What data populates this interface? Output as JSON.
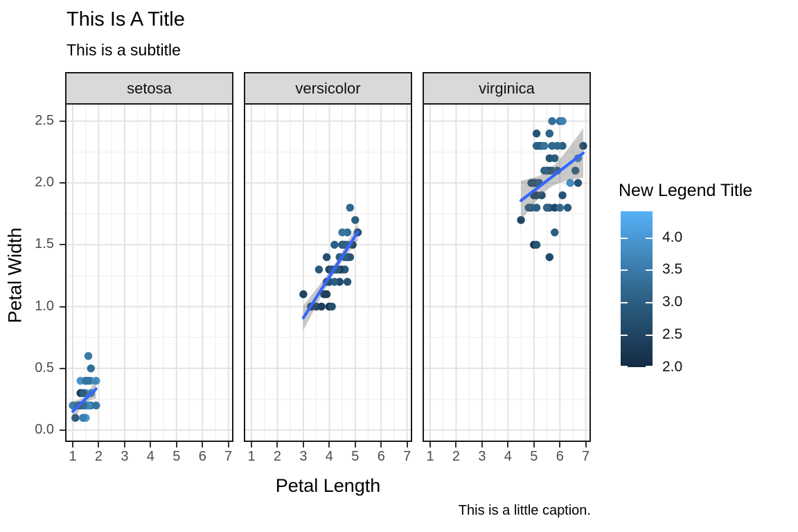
{
  "chart_data": {
    "type": "scatter",
    "title": "This Is A Title",
    "subtitle": "This is a subtitle",
    "caption": "This is a little caption.",
    "xlabel": "Petal Length",
    "ylabel": "Petal Width",
    "grid": true,
    "x_ticks": [
      1,
      2,
      3,
      4,
      5,
      6,
      7
    ],
    "y_ticks": [
      0.0,
      0.5,
      1.0,
      1.5,
      2.0,
      2.5
    ],
    "x_domain": [
      0.705,
      7.195
    ],
    "y_domain": [
      -0.095,
      2.645
    ],
    "point_columns": [
      "petal_length",
      "petal_width",
      "sepal_width"
    ],
    "legend": {
      "title": "New Legend Title",
      "position": "right",
      "type": "gradient-colorbar",
      "domain": [
        2.0,
        4.4
      ],
      "ticks": [
        4.0,
        3.5,
        3.0,
        2.5,
        2.0
      ],
      "low_color": "#132B43",
      "mid_color": "#31688E",
      "high_color": "#56B1F7"
    },
    "smooth_style": {
      "method": "lm",
      "line_color": "#3366FF",
      "band_color": "rgba(100,100,100,0.35)"
    },
    "facets": [
      {
        "label": "setosa",
        "smooth": {
          "x_range": [
            1.0,
            1.9
          ],
          "intercept": -0.0482,
          "slope": 0.2013,
          "resid_se": 0.1005,
          "n": 50,
          "x_mean": 1.462,
          "sxx": 1.4778,
          "t_crit": 2.0106
        },
        "points": [
          [
            1.4,
            0.2,
            3.5
          ],
          [
            1.4,
            0.2,
            3.0
          ],
          [
            1.3,
            0.2,
            3.2
          ],
          [
            1.5,
            0.2,
            3.1
          ],
          [
            1.4,
            0.2,
            3.6
          ],
          [
            1.7,
            0.4,
            3.9
          ],
          [
            1.4,
            0.3,
            3.4
          ],
          [
            1.5,
            0.2,
            3.4
          ],
          [
            1.4,
            0.2,
            2.9
          ],
          [
            1.5,
            0.1,
            3.1
          ],
          [
            1.5,
            0.2,
            3.7
          ],
          [
            1.6,
            0.2,
            3.4
          ],
          [
            1.4,
            0.1,
            3.0
          ],
          [
            1.1,
            0.1,
            3.0
          ],
          [
            1.2,
            0.2,
            4.0
          ],
          [
            1.5,
            0.4,
            4.4
          ],
          [
            1.3,
            0.4,
            3.9
          ],
          [
            1.4,
            0.3,
            3.5
          ],
          [
            1.7,
            0.3,
            3.8
          ],
          [
            1.5,
            0.3,
            3.8
          ],
          [
            1.7,
            0.2,
            3.4
          ],
          [
            1.5,
            0.4,
            3.7
          ],
          [
            1.0,
            0.2,
            3.6
          ],
          [
            1.7,
            0.5,
            3.3
          ],
          [
            1.9,
            0.2,
            3.4
          ],
          [
            1.6,
            0.2,
            3.0
          ],
          [
            1.6,
            0.4,
            3.4
          ],
          [
            1.5,
            0.2,
            3.5
          ],
          [
            1.4,
            0.2,
            3.4
          ],
          [
            1.6,
            0.2,
            3.2
          ],
          [
            1.6,
            0.2,
            3.1
          ],
          [
            1.5,
            0.4,
            3.4
          ],
          [
            1.5,
            0.1,
            4.1
          ],
          [
            1.4,
            0.2,
            4.2
          ],
          [
            1.5,
            0.2,
            3.1
          ],
          [
            1.2,
            0.2,
            3.2
          ],
          [
            1.3,
            0.2,
            3.5
          ],
          [
            1.4,
            0.1,
            3.6
          ],
          [
            1.3,
            0.2,
            3.0
          ],
          [
            1.5,
            0.2,
            3.4
          ],
          [
            1.3,
            0.3,
            3.5
          ],
          [
            1.3,
            0.3,
            2.3
          ],
          [
            1.3,
            0.2,
            3.2
          ],
          [
            1.6,
            0.6,
            3.5
          ],
          [
            1.9,
            0.4,
            3.8
          ],
          [
            1.4,
            0.3,
            3.0
          ],
          [
            1.6,
            0.2,
            3.8
          ],
          [
            1.4,
            0.2,
            3.2
          ],
          [
            1.5,
            0.2,
            3.7
          ],
          [
            1.4,
            0.2,
            3.3
          ]
        ]
      },
      {
        "label": "versicolor",
        "smooth": {
          "x_range": [
            3.0,
            5.1
          ],
          "intercept": -0.0843,
          "slope": 0.3311,
          "resid_se": 0.1234,
          "n": 50,
          "x_mean": 4.26,
          "sxx": 10.82,
          "t_crit": 2.0106
        },
        "points": [
          [
            4.7,
            1.4,
            3.2
          ],
          [
            4.5,
            1.5,
            3.2
          ],
          [
            4.9,
            1.5,
            3.1
          ],
          [
            4.0,
            1.3,
            2.3
          ],
          [
            4.6,
            1.5,
            2.8
          ],
          [
            4.5,
            1.3,
            2.8
          ],
          [
            4.7,
            1.6,
            3.3
          ],
          [
            3.3,
            1.0,
            2.4
          ],
          [
            4.6,
            1.3,
            2.9
          ],
          [
            3.9,
            1.4,
            2.7
          ],
          [
            3.5,
            1.0,
            2.0
          ],
          [
            4.2,
            1.5,
            3.0
          ],
          [
            4.0,
            1.0,
            2.2
          ],
          [
            4.7,
            1.4,
            2.9
          ],
          [
            3.6,
            1.3,
            2.9
          ],
          [
            4.4,
            1.4,
            3.1
          ],
          [
            4.5,
            1.5,
            3.0
          ],
          [
            4.1,
            1.0,
            2.7
          ],
          [
            4.5,
            1.5,
            2.2
          ],
          [
            3.9,
            1.1,
            2.5
          ],
          [
            4.8,
            1.8,
            3.2
          ],
          [
            4.0,
            1.3,
            2.8
          ],
          [
            4.9,
            1.5,
            2.5
          ],
          [
            4.7,
            1.2,
            2.8
          ],
          [
            4.3,
            1.3,
            2.9
          ],
          [
            4.4,
            1.4,
            3.0
          ],
          [
            4.8,
            1.4,
            2.8
          ],
          [
            5.0,
            1.7,
            3.0
          ],
          [
            4.5,
            1.5,
            2.9
          ],
          [
            3.5,
            1.0,
            2.6
          ],
          [
            3.8,
            1.1,
            2.4
          ],
          [
            3.7,
            1.0,
            2.4
          ],
          [
            3.9,
            1.2,
            2.7
          ],
          [
            5.1,
            1.6,
            2.7
          ],
          [
            4.5,
            1.5,
            3.0
          ],
          [
            4.5,
            1.6,
            3.4
          ],
          [
            4.7,
            1.5,
            3.1
          ],
          [
            4.4,
            1.3,
            2.3
          ],
          [
            4.1,
            1.3,
            3.0
          ],
          [
            4.0,
            1.3,
            2.5
          ],
          [
            4.4,
            1.2,
            2.6
          ],
          [
            4.6,
            1.4,
            3.0
          ],
          [
            4.0,
            1.2,
            2.6
          ],
          [
            3.3,
            1.0,
            2.3
          ],
          [
            4.2,
            1.3,
            2.7
          ],
          [
            4.2,
            1.2,
            3.0
          ],
          [
            4.2,
            1.3,
            2.9
          ],
          [
            4.3,
            1.3,
            2.9
          ],
          [
            3.0,
            1.1,
            2.5
          ],
          [
            4.1,
            1.3,
            2.8
          ]
        ]
      },
      {
        "label": "virginica",
        "smooth": {
          "x_range": [
            4.5,
            6.9
          ],
          "intercept": 1.1361,
          "slope": 0.1603,
          "resid_se": 0.2627,
          "n": 50,
          "x_mean": 5.552,
          "sxx": 14.925,
          "t_crit": 2.0106
        },
        "points": [
          [
            6.0,
            2.5,
            3.3
          ],
          [
            5.1,
            1.9,
            2.7
          ],
          [
            5.9,
            2.1,
            3.0
          ],
          [
            5.6,
            1.8,
            2.9
          ],
          [
            5.8,
            2.2,
            3.0
          ],
          [
            6.6,
            2.1,
            3.0
          ],
          [
            4.5,
            1.7,
            2.5
          ],
          [
            6.3,
            1.8,
            2.9
          ],
          [
            5.8,
            1.8,
            2.5
          ],
          [
            6.1,
            2.5,
            3.6
          ],
          [
            5.1,
            2.0,
            3.2
          ],
          [
            5.3,
            1.9,
            2.7
          ],
          [
            5.5,
            2.1,
            3.0
          ],
          [
            5.0,
            2.0,
            2.5
          ],
          [
            5.1,
            2.4,
            2.8
          ],
          [
            5.3,
            2.3,
            3.2
          ],
          [
            5.5,
            1.8,
            3.0
          ],
          [
            6.7,
            2.2,
            3.8
          ],
          [
            6.9,
            2.3,
            2.6
          ],
          [
            5.0,
            1.5,
            2.2
          ],
          [
            5.7,
            2.3,
            3.2
          ],
          [
            4.9,
            2.0,
            2.8
          ],
          [
            6.7,
            2.0,
            2.8
          ],
          [
            4.9,
            1.8,
            2.7
          ],
          [
            5.7,
            2.1,
            3.3
          ],
          [
            6.0,
            1.8,
            3.2
          ],
          [
            4.8,
            1.8,
            2.8
          ],
          [
            4.9,
            1.8,
            3.0
          ],
          [
            5.6,
            2.1,
            2.8
          ],
          [
            5.8,
            1.6,
            3.0
          ],
          [
            6.1,
            1.9,
            2.8
          ],
          [
            6.4,
            2.0,
            3.8
          ],
          [
            5.6,
            2.2,
            2.8
          ],
          [
            5.1,
            1.5,
            2.8
          ],
          [
            5.6,
            1.4,
            2.6
          ],
          [
            6.1,
            2.3,
            3.0
          ],
          [
            5.6,
            2.4,
            3.4
          ],
          [
            5.5,
            1.8,
            3.1
          ],
          [
            4.8,
            1.8,
            3.0
          ],
          [
            5.4,
            2.1,
            3.1
          ],
          [
            5.6,
            2.4,
            3.1
          ],
          [
            5.1,
            2.3,
            3.1
          ],
          [
            5.1,
            1.9,
            2.7
          ],
          [
            5.9,
            2.3,
            3.2
          ],
          [
            5.7,
            2.5,
            3.3
          ],
          [
            5.2,
            2.3,
            3.0
          ],
          [
            5.0,
            1.9,
            2.5
          ],
          [
            5.2,
            2.0,
            3.0
          ],
          [
            5.4,
            2.3,
            3.4
          ],
          [
            5.1,
            1.8,
            3.0
          ]
        ]
      }
    ]
  }
}
